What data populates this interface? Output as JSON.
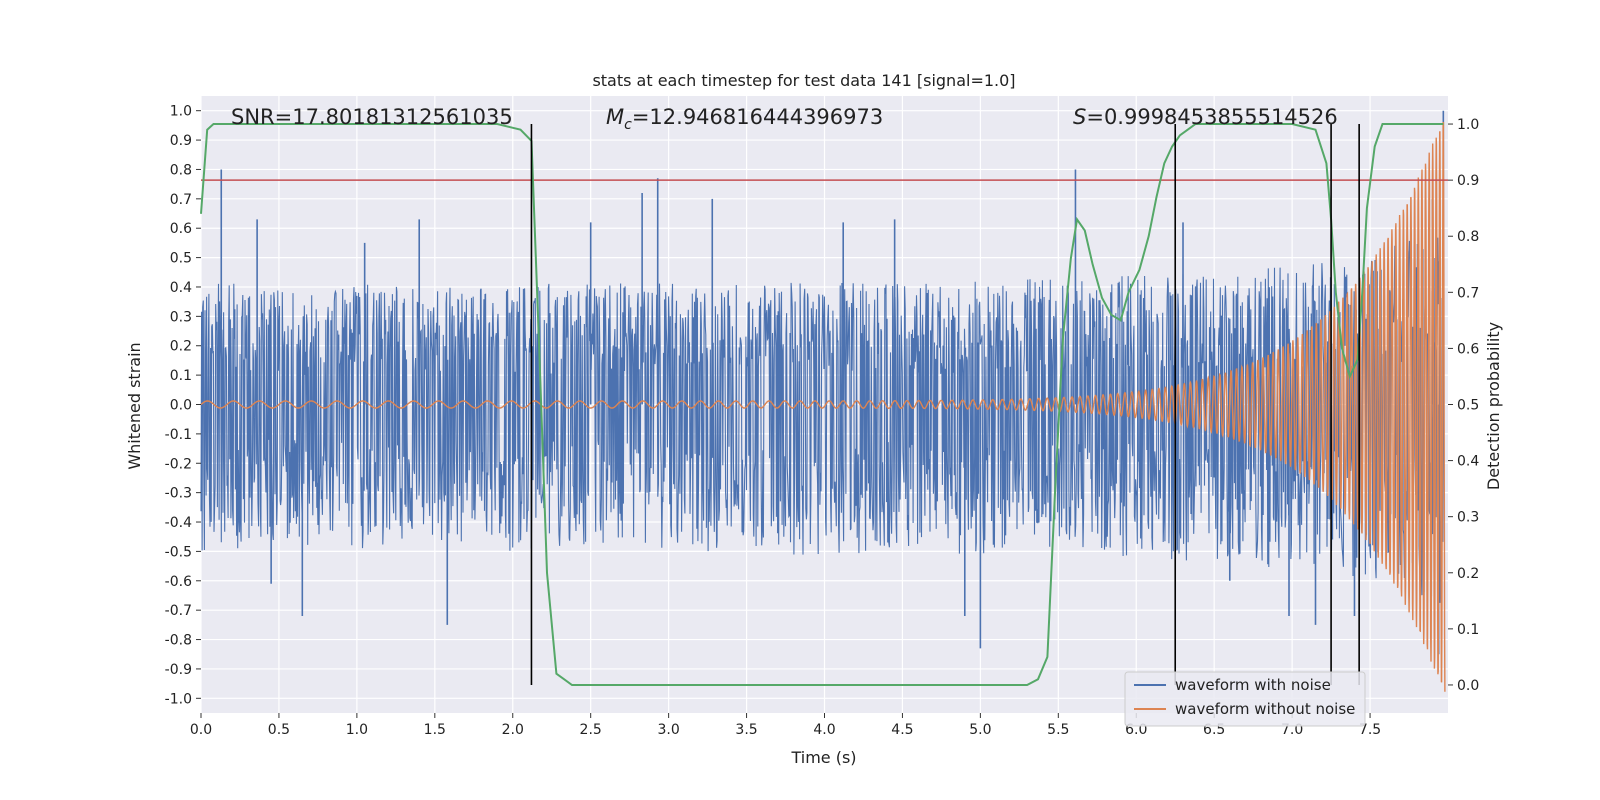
{
  "chart_data": {
    "type": "line",
    "title": "stats at each timestep for test data 141 [signal=1.0]",
    "xlabel": "Time (s)",
    "ylabel": "Whitened strain",
    "y2label": "Detection probability",
    "xlim": [
      0.0,
      8.0
    ],
    "ylim": [
      -1.05,
      1.05
    ],
    "y2lim": [
      -0.05,
      1.05
    ],
    "x_ticks": [
      "0.0",
      "0.5",
      "1.0",
      "1.5",
      "2.0",
      "2.5",
      "3.0",
      "3.5",
      "4.0",
      "4.5",
      "5.0",
      "5.5",
      "6.0",
      "6.5",
      "7.0",
      "7.5"
    ],
    "y_ticks": [
      "1.0",
      "0.9",
      "0.8",
      "0.7",
      "0.6",
      "0.5",
      "0.4",
      "0.3",
      "0.2",
      "0.1",
      "0.0",
      "-0.1",
      "-0.2",
      "-0.3",
      "-0.4",
      "-0.5",
      "-0.6",
      "-0.7",
      "-0.8",
      "-0.9",
      "-1.0"
    ],
    "y2_ticks": [
      "1.0",
      "0.9",
      "0.8",
      "0.7",
      "0.6",
      "0.5",
      "0.4",
      "0.3",
      "0.2",
      "0.1",
      "0.0"
    ],
    "annotations": {
      "snr": "SNR=17.80181312561035",
      "mc_symbol": "M",
      "mc_sub": "c",
      "mc_value": "=12.946816444396973",
      "s_symbol": "S",
      "s_value": "=0.9998453855514526"
    },
    "threshold": 0.9,
    "vertical_lines": [
      2.12,
      6.25,
      7.25,
      7.43
    ],
    "series": [
      {
        "name": "waveform with noise",
        "color": "#4c72b0",
        "envelope": [
          {
            "t": 0.0,
            "upper": 0.42,
            "lower": -0.55
          },
          {
            "t": 0.5,
            "upper": 0.4,
            "lower": -0.47
          },
          {
            "t": 1.0,
            "upper": 0.41,
            "lower": -0.5
          },
          {
            "t": 1.5,
            "upper": 0.4,
            "lower": -0.46
          },
          {
            "t": 2.0,
            "upper": 0.42,
            "lower": -0.5
          },
          {
            "t": 2.5,
            "upper": 0.41,
            "lower": -0.48
          },
          {
            "t": 3.0,
            "upper": 0.42,
            "lower": -0.5
          },
          {
            "t": 3.5,
            "upper": 0.41,
            "lower": -0.5
          },
          {
            "t": 4.0,
            "upper": 0.42,
            "lower": -0.52
          },
          {
            "t": 4.5,
            "upper": 0.41,
            "lower": -0.49
          },
          {
            "t": 5.0,
            "upper": 0.42,
            "lower": -0.52
          },
          {
            "t": 5.5,
            "upper": 0.43,
            "lower": -0.5
          },
          {
            "t": 6.0,
            "upper": 0.44,
            "lower": -0.52
          },
          {
            "t": 6.5,
            "upper": 0.45,
            "lower": -0.54
          },
          {
            "t": 7.0,
            "upper": 0.47,
            "lower": -0.57
          },
          {
            "t": 7.5,
            "upper": 0.52,
            "lower": -0.6
          },
          {
            "t": 7.9,
            "upper": 0.6,
            "lower": -0.68
          }
        ],
        "spikes": [
          {
            "t": 0.13,
            "v": 0.8
          },
          {
            "t": 0.36,
            "v": 0.63
          },
          {
            "t": 0.45,
            "v": -0.61
          },
          {
            "t": 0.65,
            "v": -0.72
          },
          {
            "t": 1.05,
            "v": 0.55
          },
          {
            "t": 1.4,
            "v": 0.63
          },
          {
            "t": 1.58,
            "v": -0.75
          },
          {
            "t": 2.5,
            "v": 0.62
          },
          {
            "t": 2.83,
            "v": 0.72
          },
          {
            "t": 2.93,
            "v": 0.77
          },
          {
            "t": 3.28,
            "v": 0.7
          },
          {
            "t": 4.12,
            "v": 0.62
          },
          {
            "t": 4.45,
            "v": 0.63
          },
          {
            "t": 4.9,
            "v": -0.72
          },
          {
            "t": 5.0,
            "v": -0.83
          },
          {
            "t": 5.61,
            "v": 0.8
          },
          {
            "t": 6.3,
            "v": 0.62
          },
          {
            "t": 6.6,
            "v": -0.6
          },
          {
            "t": 6.98,
            "v": -0.72
          },
          {
            "t": 7.15,
            "v": -0.75
          },
          {
            "t": 7.4,
            "v": -0.72
          },
          {
            "t": 7.9,
            "v": 0.7
          },
          {
            "t": 7.94,
            "v": -0.85
          },
          {
            "t": 7.97,
            "v": 1.0
          }
        ]
      },
      {
        "name": "waveform without noise",
        "color": "#dd8452",
        "chirp": {
          "amp_start": 0.012,
          "amp_end": 1.0,
          "f_start": 6,
          "f_end": 45,
          "t_end": 7.98
        }
      },
      {
        "name": "detection probability",
        "color": "#55a868",
        "x": [
          0.0,
          0.04,
          0.08,
          0.12,
          0.2,
          0.5,
          1.0,
          1.5,
          1.9,
          2.05,
          2.12,
          2.17,
          2.22,
          2.28,
          2.33,
          2.38,
          2.45,
          2.6,
          3.0,
          4.0,
          5.0,
          5.3,
          5.37,
          5.43,
          5.48,
          5.53,
          5.58,
          5.62,
          5.67,
          5.72,
          5.78,
          5.84,
          5.9,
          5.95,
          6.02,
          6.08,
          6.13,
          6.18,
          6.23,
          6.28,
          6.33,
          6.38,
          6.45,
          6.55,
          6.7,
          7.0,
          7.15,
          7.22,
          7.25,
          7.28,
          7.32,
          7.37,
          7.42,
          7.45,
          7.48,
          7.53,
          7.58,
          7.7,
          7.97
        ],
        "y": [
          0.84,
          0.99,
          1.0,
          1.0,
          1.0,
          1.0,
          1.0,
          1.0,
          1.0,
          0.99,
          0.97,
          0.6,
          0.2,
          0.02,
          0.01,
          0.0,
          0.0,
          0.0,
          0.0,
          0.0,
          0.0,
          0.0,
          0.01,
          0.05,
          0.35,
          0.62,
          0.76,
          0.83,
          0.81,
          0.75,
          0.69,
          0.66,
          0.65,
          0.7,
          0.74,
          0.8,
          0.87,
          0.93,
          0.96,
          0.98,
          0.99,
          1.0,
          1.0,
          1.0,
          1.0,
          1.0,
          0.99,
          0.93,
          0.83,
          0.7,
          0.6,
          0.55,
          0.58,
          0.7,
          0.85,
          0.96,
          1.0,
          1.0,
          1.0
        ]
      },
      {
        "name": "threshold",
        "color": "#c44e52"
      }
    ],
    "legend": {
      "placement": "lower-right",
      "entries": [
        "waveform with noise",
        "waveform without noise"
      ]
    }
  }
}
